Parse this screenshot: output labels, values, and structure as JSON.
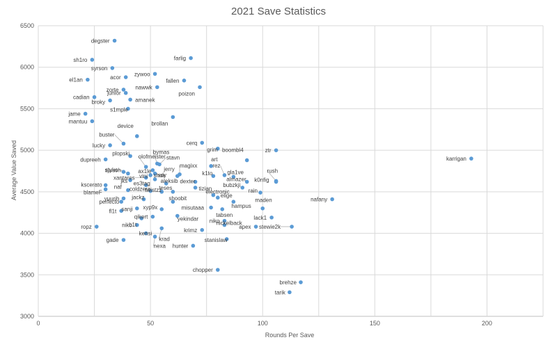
{
  "chart_data": {
    "type": "scatter",
    "title": "2021 Save Statistics",
    "xlabel": "Rounds Per Save",
    "ylabel": "Average Value Saved",
    "xlim": [
      0,
      225
    ],
    "ylim": [
      3000,
      6500
    ],
    "xticks": [
      0,
      50,
      100,
      150,
      200
    ],
    "yticks": [
      3000,
      3500,
      4000,
      4500,
      5000,
      5500,
      6000,
      6500
    ],
    "grid": true,
    "marker_color": "#5b9bd5",
    "points": [
      {
        "label": "degster",
        "x": 34,
        "y": 6320
      },
      {
        "label": "sh1ro",
        "x": 24,
        "y": 6090
      },
      {
        "label": "farlig",
        "x": 68,
        "y": 6110
      },
      {
        "label": "syrson",
        "x": 33,
        "y": 5990
      },
      {
        "label": "acor",
        "x": 39,
        "y": 5880
      },
      {
        "label": "zywoo",
        "x": 52,
        "y": 5920
      },
      {
        "label": "el1an",
        "x": 22,
        "y": 5850
      },
      {
        "label": "fallen",
        "x": 65,
        "y": 5840
      },
      {
        "label": "zorte",
        "x": 38,
        "y": 5730
      },
      {
        "label": "nawwk",
        "x": 53,
        "y": 5760
      },
      {
        "label": "poizon",
        "x": 72,
        "y": 5760
      },
      {
        "label": "junior",
        "x": 39,
        "y": 5690
      },
      {
        "label": "cadian",
        "x": 25,
        "y": 5640
      },
      {
        "label": "broky",
        "x": 32,
        "y": 5600
      },
      {
        "label": "amanek",
        "x": 41,
        "y": 5610
      },
      {
        "label": "s1mple",
        "x": 40,
        "y": 5500
      },
      {
        "label": "jame",
        "x": 21,
        "y": 5440
      },
      {
        "label": "brollan",
        "x": 60,
        "y": 5400
      },
      {
        "label": "mantuu",
        "x": 24,
        "y": 5350
      },
      {
        "label": "device",
        "x": 44,
        "y": 5170
      },
      {
        "label": "buster",
        "x": 38,
        "y": 5080
      },
      {
        "label": "lucky",
        "x": 32,
        "y": 5060
      },
      {
        "label": "cerq",
        "x": 73,
        "y": 5090
      },
      {
        "label": "grim",
        "x": 80,
        "y": 5020
      },
      {
        "label": "ztr",
        "x": 106,
        "y": 5000
      },
      {
        "label": "karrigan",
        "x": 193,
        "y": 4900
      },
      {
        "label": "plopski",
        "x": 41,
        "y": 4930
      },
      {
        "label": "boombl4",
        "x": 93,
        "y": 4880
      },
      {
        "label": "dupreeh",
        "x": 30,
        "y": 4890
      },
      {
        "label": "bymas",
        "x": 53,
        "y": 4840
      },
      {
        "label": "stavn",
        "x": 54,
        "y": 4830
      },
      {
        "label": "art",
        "x": 77,
        "y": 4810
      },
      {
        "label": "olofmeister",
        "x": 48,
        "y": 4800
      },
      {
        "label": "ax1le",
        "x": 51,
        "y": 4760
      },
      {
        "label": "styko",
        "x": 38,
        "y": 4740
      },
      {
        "label": "magixx",
        "x": 63,
        "y": 4710
      },
      {
        "label": "sjuush",
        "x": 40,
        "y": 4720
      },
      {
        "label": "sdy",
        "x": 52,
        "y": 4720
      },
      {
        "label": "vini",
        "x": 50,
        "y": 4700
      },
      {
        "label": "jerry",
        "x": 62,
        "y": 4690
      },
      {
        "label": "k1to",
        "x": 78,
        "y": 4690
      },
      {
        "label": "rez",
        "x": 83,
        "y": 4700
      },
      {
        "label": "gla1ve",
        "x": 87,
        "y": 4680
      },
      {
        "label": "rush",
        "x": 106,
        "y": 4630
      },
      {
        "label": "xantares",
        "x": 48,
        "y": 4670
      },
      {
        "label": "shox",
        "x": 52,
        "y": 4650
      },
      {
        "label": "jks",
        "x": 41,
        "y": 4640
      },
      {
        "label": "dexter",
        "x": 70,
        "y": 4620
      },
      {
        "label": "almazer",
        "x": 93,
        "y": 4620
      },
      {
        "label": "k0nfig",
        "x": 106,
        "y": 4620
      },
      {
        "label": "aleksib",
        "x": 57,
        "y": 4600
      },
      {
        "label": "es3tag",
        "x": 48,
        "y": 4580
      },
      {
        "label": "kscerato",
        "x": 30,
        "y": 4580
      },
      {
        "label": "tizian",
        "x": 70,
        "y": 4550
      },
      {
        "label": "bubzkji",
        "x": 91,
        "y": 4550
      },
      {
        "label": "blameF",
        "x": 30,
        "y": 4530
      },
      {
        "label": "naf",
        "x": 40,
        "y": 4520
      },
      {
        "label": "coldzera",
        "x": 50,
        "y": 4510
      },
      {
        "label": "twistzz",
        "x": 55,
        "y": 4500
      },
      {
        "label": "teses",
        "x": 60,
        "y": 4500
      },
      {
        "label": "rain",
        "x": 99,
        "y": 4490
      },
      {
        "label": "electronic",
        "x": 78,
        "y": 4460
      },
      {
        "label": "yuurih",
        "x": 38,
        "y": 4420
      },
      {
        "label": "jackz",
        "x": 47,
        "y": 4410
      },
      {
        "label": "elige",
        "x": 80,
        "y": 4430
      },
      {
        "label": "nafany",
        "x": 131,
        "y": 4410
      },
      {
        "label": "perfecto",
        "x": 37,
        "y": 4380
      },
      {
        "label": "shoobit",
        "x": 60,
        "y": 4380
      },
      {
        "label": "hampus",
        "x": 87,
        "y": 4380
      },
      {
        "label": "misutaaa",
        "x": 77,
        "y": 4310
      },
      {
        "label": "sanji",
        "x": 44,
        "y": 4300
      },
      {
        "label": "xyp9x",
        "x": 55,
        "y": 4290
      },
      {
        "label": "fl1t",
        "x": 37,
        "y": 4270
      },
      {
        "label": "tabsen",
        "x": 82,
        "y": 4290
      },
      {
        "label": "maden",
        "x": 100,
        "y": 4300
      },
      {
        "label": "yekindar",
        "x": 62,
        "y": 4210
      },
      {
        "label": "qikert",
        "x": 51,
        "y": 4200
      },
      {
        "label": "b1t",
        "x": 46,
        "y": 4180
      },
      {
        "label": "lack1",
        "x": 104,
        "y": 4190
      },
      {
        "label": "niko",
        "x": 83,
        "y": 4150
      },
      {
        "label": "ropz",
        "x": 26,
        "y": 4080
      },
      {
        "label": "niko",
        "x": 44,
        "y": 4100
      },
      {
        "label": "nickelback",
        "x": 83,
        "y": 4100
      },
      {
        "label": "apex",
        "x": 97,
        "y": 4080
      },
      {
        "label": "stewie2k",
        "x": 113,
        "y": 4080
      },
      {
        "label": "krad",
        "x": 55,
        "y": 4060
      },
      {
        "label": "krimz",
        "x": 73,
        "y": 4040
      },
      {
        "label": "kensi",
        "x": 48,
        "y": 4000
      },
      {
        "label": "nexa",
        "x": 52,
        "y": 3960
      },
      {
        "label": "stanislaw",
        "x": 84,
        "y": 3930
      },
      {
        "label": "gade",
        "x": 38,
        "y": 3920
      },
      {
        "label": "hunter",
        "x": 69,
        "y": 3850
      },
      {
        "label": "chopper",
        "x": 80,
        "y": 3560
      },
      {
        "label": "brehze",
        "x": 117,
        "y": 3410
      },
      {
        "label": "tarik",
        "x": 112,
        "y": 3290
      }
    ]
  }
}
